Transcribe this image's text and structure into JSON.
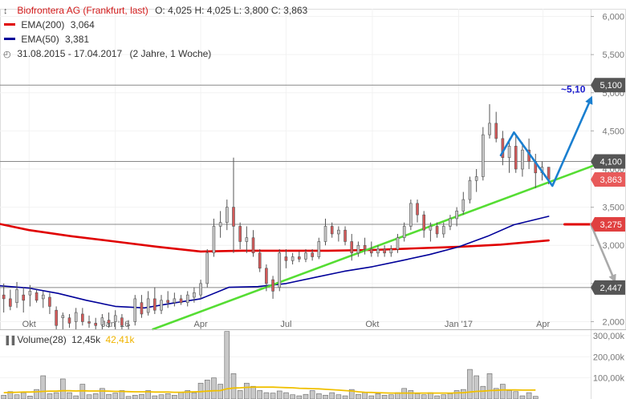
{
  "header": {
    "instrument": "Biofrontera AG (Frankfurt, last)",
    "ohlc": "O: 4,025  H: 4,025  L: 3,800  C: 3,863",
    "ema200_label": "EMA(200)",
    "ema200_value": "3,064",
    "ema50_label": "EMA(50)",
    "ema50_value": "3,381",
    "period": "31.08.2015 - 17.04.2017",
    "period_note": "(2 Jahre, 1 Woche)"
  },
  "volume_legend": {
    "label": "Volume(28)",
    "value": "12,45k",
    "avg": "42,41k"
  },
  "colors": {
    "candle_up": "#c8c8c8",
    "candle_down": "#d45a5a",
    "ema200": "#e00000",
    "ema50": "#000099",
    "trendline": "#55dd33",
    "arrow_up": "#1a7fd0",
    "arrow_down": "#aaaaaa",
    "last_badge": "#e85a5a",
    "level_badge": "#555555",
    "volume_bar": "#c8c8c8",
    "volume_avg": "#f0c000"
  },
  "chart_data": {
    "type": "candlestick",
    "title": "Biofrontera AG (Frankfurt, last)",
    "ylim": [
      1.9,
      6.1
    ],
    "yticks": [
      "2,000",
      "2,500",
      "3,000",
      "3,500",
      "4,000",
      "4,500",
      "5,000",
      "5,500",
      "6,000"
    ],
    "ytick_values": [
      2.0,
      2.5,
      3.0,
      3.5,
      4.0,
      4.5,
      5.0,
      5.5,
      6.0
    ],
    "xlim": [
      "2015-08-31",
      "2017-04-21"
    ],
    "xticks": [
      {
        "label": "Okt",
        "date": "2015-10-01"
      },
      {
        "label": "Jan '16",
        "date": "2016-01-01"
      },
      {
        "label": "Apr",
        "date": "2016-04-01"
      },
      {
        "label": "Jul",
        "date": "2016-07-01"
      },
      {
        "label": "Okt",
        "date": "2016-10-01"
      },
      {
        "label": "Jan '17",
        "date": "2017-01-01"
      },
      {
        "label": "Apr",
        "date": "2017-04-01"
      }
    ],
    "price_badges": [
      {
        "label": "5,100",
        "value": 5.1,
        "kind": "level"
      },
      {
        "label": "4,100",
        "value": 4.1,
        "kind": "level"
      },
      {
        "label": "3,863",
        "value": 3.863,
        "kind": "last"
      },
      {
        "label": "3,275",
        "value": 3.275,
        "kind": "target"
      },
      {
        "label": "2,447",
        "value": 2.447,
        "kind": "level"
      }
    ],
    "horizontal_levels": [
      5.1,
      4.1,
      3.275,
      2.447
    ],
    "annotation": {
      "text": "~5,10"
    },
    "candles": [
      {
        "d": "2015-09-04",
        "o": 2.35,
        "h": 2.5,
        "l": 2.12,
        "c": 2.3
      },
      {
        "d": "2015-09-11",
        "o": 2.3,
        "h": 2.42,
        "l": 2.15,
        "c": 2.2
      },
      {
        "d": "2015-09-18",
        "o": 2.25,
        "h": 2.52,
        "l": 2.18,
        "c": 2.42
      },
      {
        "d": "2015-09-25",
        "o": 2.35,
        "h": 2.45,
        "l": 2.12,
        "c": 2.28
      },
      {
        "d": "2015-10-02",
        "o": 2.35,
        "h": 2.48,
        "l": 2.2,
        "c": 2.4
      },
      {
        "d": "2015-10-09",
        "o": 2.38,
        "h": 2.42,
        "l": 2.25,
        "c": 2.28
      },
      {
        "d": "2015-10-16",
        "o": 2.3,
        "h": 2.4,
        "l": 2.18,
        "c": 2.35
      },
      {
        "d": "2015-10-23",
        "o": 2.32,
        "h": 2.38,
        "l": 2.1,
        "c": 2.2
      },
      {
        "d": "2015-10-30",
        "o": 2.15,
        "h": 2.2,
        "l": 1.9,
        "c": 1.95
      },
      {
        "d": "2015-11-06",
        "o": 2.05,
        "h": 2.12,
        "l": 1.9,
        "c": 2.08
      },
      {
        "d": "2015-11-13",
        "o": 2.05,
        "h": 2.1,
        "l": 1.92,
        "c": 1.98
      },
      {
        "d": "2015-11-20",
        "o": 2.0,
        "h": 2.18,
        "l": 1.9,
        "c": 2.12
      },
      {
        "d": "2015-11-27",
        "o": 2.1,
        "h": 2.18,
        "l": 1.95,
        "c": 2.0
      },
      {
        "d": "2015-12-04",
        "o": 2.0,
        "h": 2.08,
        "l": 1.92,
        "c": 1.98
      },
      {
        "d": "2015-12-11",
        "o": 1.98,
        "h": 2.05,
        "l": 1.9,
        "c": 1.95
      },
      {
        "d": "2015-12-18",
        "o": 1.96,
        "h": 2.1,
        "l": 1.9,
        "c": 2.05
      },
      {
        "d": "2015-12-25",
        "o": 2.02,
        "h": 2.12,
        "l": 1.92,
        "c": 1.98
      },
      {
        "d": "2016-01-01",
        "o": 2.0,
        "h": 2.15,
        "l": 1.9,
        "c": 2.08
      },
      {
        "d": "2016-01-08",
        "o": 2.05,
        "h": 2.1,
        "l": 1.9,
        "c": 1.95
      },
      {
        "d": "2016-01-15",
        "o": 1.95,
        "h": 2.02,
        "l": 1.9,
        "c": 1.96
      },
      {
        "d": "2016-01-22",
        "o": 2.0,
        "h": 2.35,
        "l": 1.95,
        "c": 2.3
      },
      {
        "d": "2016-01-29",
        "o": 2.25,
        "h": 2.35,
        "l": 2.05,
        "c": 2.1
      },
      {
        "d": "2016-02-05",
        "o": 2.12,
        "h": 2.4,
        "l": 2.08,
        "c": 2.3
      },
      {
        "d": "2016-02-12",
        "o": 2.3,
        "h": 2.45,
        "l": 2.1,
        "c": 2.15
      },
      {
        "d": "2016-02-19",
        "o": 2.15,
        "h": 2.35,
        "l": 2.1,
        "c": 2.28
      },
      {
        "d": "2016-02-26",
        "o": 2.28,
        "h": 2.4,
        "l": 2.18,
        "c": 2.25
      },
      {
        "d": "2016-03-04",
        "o": 2.25,
        "h": 2.38,
        "l": 2.2,
        "c": 2.3
      },
      {
        "d": "2016-03-11",
        "o": 2.3,
        "h": 2.35,
        "l": 2.22,
        "c": 2.25
      },
      {
        "d": "2016-03-18",
        "o": 2.25,
        "h": 2.4,
        "l": 2.2,
        "c": 2.35
      },
      {
        "d": "2016-03-25",
        "o": 2.32,
        "h": 2.45,
        "l": 2.25,
        "c": 2.38
      },
      {
        "d": "2016-04-01",
        "o": 2.35,
        "h": 2.55,
        "l": 2.3,
        "c": 2.5
      },
      {
        "d": "2016-04-08",
        "o": 2.5,
        "h": 2.95,
        "l": 2.45,
        "c": 2.9
      },
      {
        "d": "2016-04-15",
        "o": 2.9,
        "h": 3.35,
        "l": 2.85,
        "c": 3.25
      },
      {
        "d": "2016-04-22",
        "o": 3.25,
        "h": 3.45,
        "l": 3.1,
        "c": 3.3
      },
      {
        "d": "2016-04-29",
        "o": 3.3,
        "h": 3.6,
        "l": 3.2,
        "c": 3.5
      },
      {
        "d": "2016-05-06",
        "o": 3.5,
        "h": 4.15,
        "l": 2.9,
        "c": 3.25
      },
      {
        "d": "2016-05-13",
        "o": 3.25,
        "h": 3.3,
        "l": 2.95,
        "c": 3.05
      },
      {
        "d": "2016-05-20",
        "o": 3.05,
        "h": 3.25,
        "l": 2.9,
        "c": 3.1
      },
      {
        "d": "2016-05-27",
        "o": 3.1,
        "h": 3.2,
        "l": 2.85,
        "c": 2.9
      },
      {
        "d": "2016-06-03",
        "o": 2.9,
        "h": 2.95,
        "l": 2.65,
        "c": 2.7
      },
      {
        "d": "2016-06-10",
        "o": 2.7,
        "h": 2.75,
        "l": 2.4,
        "c": 2.5
      },
      {
        "d": "2016-06-17",
        "o": 2.55,
        "h": 2.6,
        "l": 2.3,
        "c": 2.4
      },
      {
        "d": "2016-06-24",
        "o": 2.45,
        "h": 2.95,
        "l": 2.4,
        "c": 2.9
      },
      {
        "d": "2016-07-01",
        "o": 2.85,
        "h": 2.95,
        "l": 2.7,
        "c": 2.8
      },
      {
        "d": "2016-07-08",
        "o": 2.8,
        "h": 2.9,
        "l": 2.75,
        "c": 2.85
      },
      {
        "d": "2016-07-15",
        "o": 2.85,
        "h": 2.92,
        "l": 2.78,
        "c": 2.82
      },
      {
        "d": "2016-07-22",
        "o": 2.82,
        "h": 2.95,
        "l": 2.78,
        "c": 2.9
      },
      {
        "d": "2016-07-29",
        "o": 2.9,
        "h": 2.95,
        "l": 2.8,
        "c": 2.85
      },
      {
        "d": "2016-08-05",
        "o": 2.85,
        "h": 3.1,
        "l": 2.82,
        "c": 3.05
      },
      {
        "d": "2016-08-12",
        "o": 3.05,
        "h": 3.35,
        "l": 3.0,
        "c": 3.25
      },
      {
        "d": "2016-08-19",
        "o": 3.25,
        "h": 3.3,
        "l": 3.1,
        "c": 3.15
      },
      {
        "d": "2016-08-26",
        "o": 3.15,
        "h": 3.25,
        "l": 3.05,
        "c": 3.2
      },
      {
        "d": "2016-09-02",
        "o": 3.2,
        "h": 3.25,
        "l": 3.0,
        "c": 3.05
      },
      {
        "d": "2016-09-09",
        "o": 3.05,
        "h": 3.15,
        "l": 2.8,
        "c": 2.9
      },
      {
        "d": "2016-09-16",
        "o": 2.9,
        "h": 3.05,
        "l": 2.85,
        "c": 3.0
      },
      {
        "d": "2016-09-23",
        "o": 3.0,
        "h": 3.1,
        "l": 2.88,
        "c": 2.95
      },
      {
        "d": "2016-09-30",
        "o": 2.95,
        "h": 3.05,
        "l": 2.85,
        "c": 2.9
      },
      {
        "d": "2016-10-07",
        "o": 2.9,
        "h": 3.0,
        "l": 2.85,
        "c": 2.95
      },
      {
        "d": "2016-10-14",
        "o": 2.95,
        "h": 3.0,
        "l": 2.85,
        "c": 2.9
      },
      {
        "d": "2016-10-21",
        "o": 2.9,
        "h": 3.0,
        "l": 2.85,
        "c": 2.95
      },
      {
        "d": "2016-10-28",
        "o": 2.95,
        "h": 3.15,
        "l": 2.9,
        "c": 3.1
      },
      {
        "d": "2016-11-04",
        "o": 3.1,
        "h": 3.3,
        "l": 3.05,
        "c": 3.25
      },
      {
        "d": "2016-11-11",
        "o": 3.25,
        "h": 3.6,
        "l": 3.2,
        "c": 3.55
      },
      {
        "d": "2016-11-18",
        "o": 3.55,
        "h": 3.6,
        "l": 3.3,
        "c": 3.4
      },
      {
        "d": "2016-11-25",
        "o": 3.4,
        "h": 3.45,
        "l": 3.1,
        "c": 3.2
      },
      {
        "d": "2016-12-02",
        "o": 3.2,
        "h": 3.3,
        "l": 3.05,
        "c": 3.25
      },
      {
        "d": "2016-12-09",
        "o": 3.25,
        "h": 3.3,
        "l": 3.1,
        "c": 3.15
      },
      {
        "d": "2016-12-16",
        "o": 3.15,
        "h": 3.3,
        "l": 3.1,
        "c": 3.25
      },
      {
        "d": "2016-12-23",
        "o": 3.25,
        "h": 3.4,
        "l": 3.2,
        "c": 3.35
      },
      {
        "d": "2016-12-30",
        "o": 3.35,
        "h": 3.5,
        "l": 3.25,
        "c": 3.45
      },
      {
        "d": "2017-01-06",
        "o": 3.45,
        "h": 3.7,
        "l": 3.4,
        "c": 3.6
      },
      {
        "d": "2017-01-13",
        "o": 3.6,
        "h": 3.9,
        "l": 3.55,
        "c": 3.85
      },
      {
        "d": "2017-01-20",
        "o": 3.85,
        "h": 4.0,
        "l": 3.7,
        "c": 3.9
      },
      {
        "d": "2017-01-27",
        "o": 3.9,
        "h": 4.55,
        "l": 3.85,
        "c": 4.45
      },
      {
        "d": "2017-02-03",
        "o": 4.45,
        "h": 4.85,
        "l": 4.4,
        "c": 4.6
      },
      {
        "d": "2017-02-10",
        "o": 4.6,
        "h": 4.75,
        "l": 4.35,
        "c": 4.4
      },
      {
        "d": "2017-02-17",
        "o": 4.4,
        "h": 4.5,
        "l": 4.05,
        "c": 4.15
      },
      {
        "d": "2017-02-24",
        "o": 4.15,
        "h": 4.4,
        "l": 3.95,
        "c": 4.3
      },
      {
        "d": "2017-03-03",
        "o": 4.3,
        "h": 4.45,
        "l": 3.95,
        "c": 4.0
      },
      {
        "d": "2017-03-10",
        "o": 4.0,
        "h": 4.35,
        "l": 3.9,
        "c": 4.25
      },
      {
        "d": "2017-03-17",
        "o": 4.25,
        "h": 4.4,
        "l": 4.0,
        "c": 4.1
      },
      {
        "d": "2017-03-24",
        "o": 4.1,
        "h": 4.2,
        "l": 3.75,
        "c": 3.95
      },
      {
        "d": "2017-03-31",
        "o": 3.95,
        "h": 4.1,
        "l": 3.85,
        "c": 4.025
      },
      {
        "d": "2017-04-07",
        "o": 4.025,
        "h": 4.025,
        "l": 3.8,
        "c": 3.863
      }
    ],
    "ema200": [
      {
        "d": "2015-08-31",
        "v": 3.28
      },
      {
        "d": "2015-10-01",
        "v": 3.2
      },
      {
        "d": "2015-11-15",
        "v": 3.12
      },
      {
        "d": "2016-01-01",
        "v": 3.05
      },
      {
        "d": "2016-02-15",
        "v": 2.98
      },
      {
        "d": "2016-04-01",
        "v": 2.92
      },
      {
        "d": "2016-05-15",
        "v": 2.93
      },
      {
        "d": "2016-07-01",
        "v": 2.93
      },
      {
        "d": "2016-08-15",
        "v": 2.93
      },
      {
        "d": "2016-10-01",
        "v": 2.94
      },
      {
        "d": "2016-11-15",
        "v": 2.96
      },
      {
        "d": "2017-01-01",
        "v": 2.98
      },
      {
        "d": "2017-02-15",
        "v": 3.01
      },
      {
        "d": "2017-04-07",
        "v": 3.064
      }
    ],
    "ema50": [
      {
        "d": "2015-08-31",
        "v": 2.47
      },
      {
        "d": "2015-10-01",
        "v": 2.44
      },
      {
        "d": "2015-11-01",
        "v": 2.37
      },
      {
        "d": "2015-12-01",
        "v": 2.28
      },
      {
        "d": "2016-01-01",
        "v": 2.2
      },
      {
        "d": "2016-02-01",
        "v": 2.18
      },
      {
        "d": "2016-03-01",
        "v": 2.24
      },
      {
        "d": "2016-04-01",
        "v": 2.3
      },
      {
        "d": "2016-05-01",
        "v": 2.45
      },
      {
        "d": "2016-06-01",
        "v": 2.46
      },
      {
        "d": "2016-07-01",
        "v": 2.5
      },
      {
        "d": "2016-08-01",
        "v": 2.58
      },
      {
        "d": "2016-09-01",
        "v": 2.66
      },
      {
        "d": "2016-10-01",
        "v": 2.72
      },
      {
        "d": "2016-11-01",
        "v": 2.8
      },
      {
        "d": "2016-12-01",
        "v": 2.88
      },
      {
        "d": "2017-01-01",
        "v": 2.98
      },
      {
        "d": "2017-02-01",
        "v": 3.12
      },
      {
        "d": "2017-03-01",
        "v": 3.27
      },
      {
        "d": "2017-04-07",
        "v": 3.381
      }
    ],
    "trendline": {
      "from": {
        "d": "2016-02-10",
        "v": 1.9
      },
      "to": {
        "d": "2017-05-26",
        "v": 4.05
      }
    },
    "arrow_up": [
      {
        "d": "2017-02-15",
        "v": 4.18
      },
      {
        "d": "2017-03-01",
        "v": 4.48
      },
      {
        "d": "2017-04-11",
        "v": 3.78
      },
      {
        "d": "2017-05-22",
        "v": 4.92
      }
    ],
    "target_line": {
      "from": {
        "d": "2017-04-24",
        "v": 3.275
      },
      "to": {
        "d": "2017-05-22",
        "v": 3.275
      }
    },
    "arrow_down": [
      {
        "d": "2017-05-22",
        "v": 3.275
      },
      {
        "d": "2017-06-16",
        "v": 2.55
      }
    ],
    "volume": {
      "ylim": [
        0,
        330000
      ],
      "yticks": [
        "100,00k",
        "200,00k",
        "300,00k"
      ],
      "ytick_values": [
        100000,
        200000,
        300000
      ],
      "values": [
        18000,
        35000,
        20000,
        30000,
        14000,
        45000,
        110000,
        25000,
        30000,
        95000,
        30000,
        15000,
        70000,
        20000,
        25000,
        50000,
        22000,
        28000,
        40000,
        12000,
        18000,
        22000,
        40000,
        15000,
        20000,
        25000,
        18000,
        30000,
        40000,
        30000,
        75000,
        90000,
        100000,
        70000,
        320000,
        120000,
        40000,
        75000,
        60000,
        40000,
        30000,
        28000,
        38000,
        30000,
        20000,
        15000,
        22000,
        40000,
        25000,
        18000,
        30000,
        20000,
        15000,
        45000,
        22000,
        30000,
        15000,
        25000,
        18000,
        20000,
        30000,
        50000,
        40000,
        25000,
        20000,
        30000,
        15000,
        20000,
        25000,
        40000,
        45000,
        140000,
        110000,
        60000,
        120000,
        50000,
        70000,
        40000,
        35000,
        15000,
        30000,
        12450
      ],
      "avg": [
        30000,
        31000,
        32000,
        33000,
        33000,
        34000,
        36000,
        37000,
        37000,
        39000,
        39000,
        38000,
        39000,
        38000,
        38000,
        38000,
        37000,
        36000,
        36000,
        35000,
        34000,
        34000,
        34000,
        33000,
        33000,
        33000,
        32000,
        32000,
        33000,
        34000,
        35000,
        37000,
        39000,
        40000,
        48000,
        52000,
        53000,
        55000,
        56000,
        56000,
        56000,
        56000,
        55000,
        54000,
        53000,
        51000,
        50000,
        49000,
        48000,
        46000,
        44000,
        42000,
        40000,
        38000,
        34000,
        32000,
        31000,
        30000,
        29000,
        28000,
        28000,
        28000,
        28000,
        28000,
        28000,
        28000,
        28000,
        28000,
        28000,
        29000,
        30000,
        33000,
        36000,
        37000,
        40000,
        41000,
        43000,
        43000,
        43000,
        42000,
        42000,
        42410
      ]
    }
  }
}
